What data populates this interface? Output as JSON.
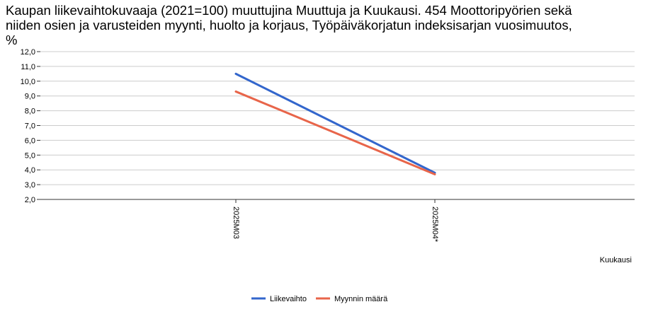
{
  "title_lines": [
    "Kaupan liikevaihtokuvaaja (2021=100) muuttujina Muuttuja ja Kuukausi. 454 Moottoripyörien sekä",
    "niiden osien ja varusteiden myynti, huolto ja korjaus, Työpäiväkorjatun indeksisarjan vuosimuutos,",
    "%"
  ],
  "chart_data": {
    "type": "line",
    "categories": [
      "2025M03",
      "2025M04*"
    ],
    "series": [
      {
        "name": "Liikevaihto",
        "color": "#3366cc",
        "values": [
          10.5,
          3.8
        ]
      },
      {
        "name": "Myynnin määrä",
        "color": "#e8654a",
        "values": [
          9.3,
          3.7
        ]
      }
    ],
    "xlabel": "Kuukausi",
    "ylabel": "",
    "ylim": [
      2.0,
      12.0
    ],
    "yticks": [
      "2,0",
      "3,0",
      "4,0",
      "5,0",
      "6,0",
      "7,0",
      "8,0",
      "9,0",
      "10,0",
      "11,0",
      "12,0"
    ],
    "grid": true,
    "legend_position": "bottom"
  }
}
